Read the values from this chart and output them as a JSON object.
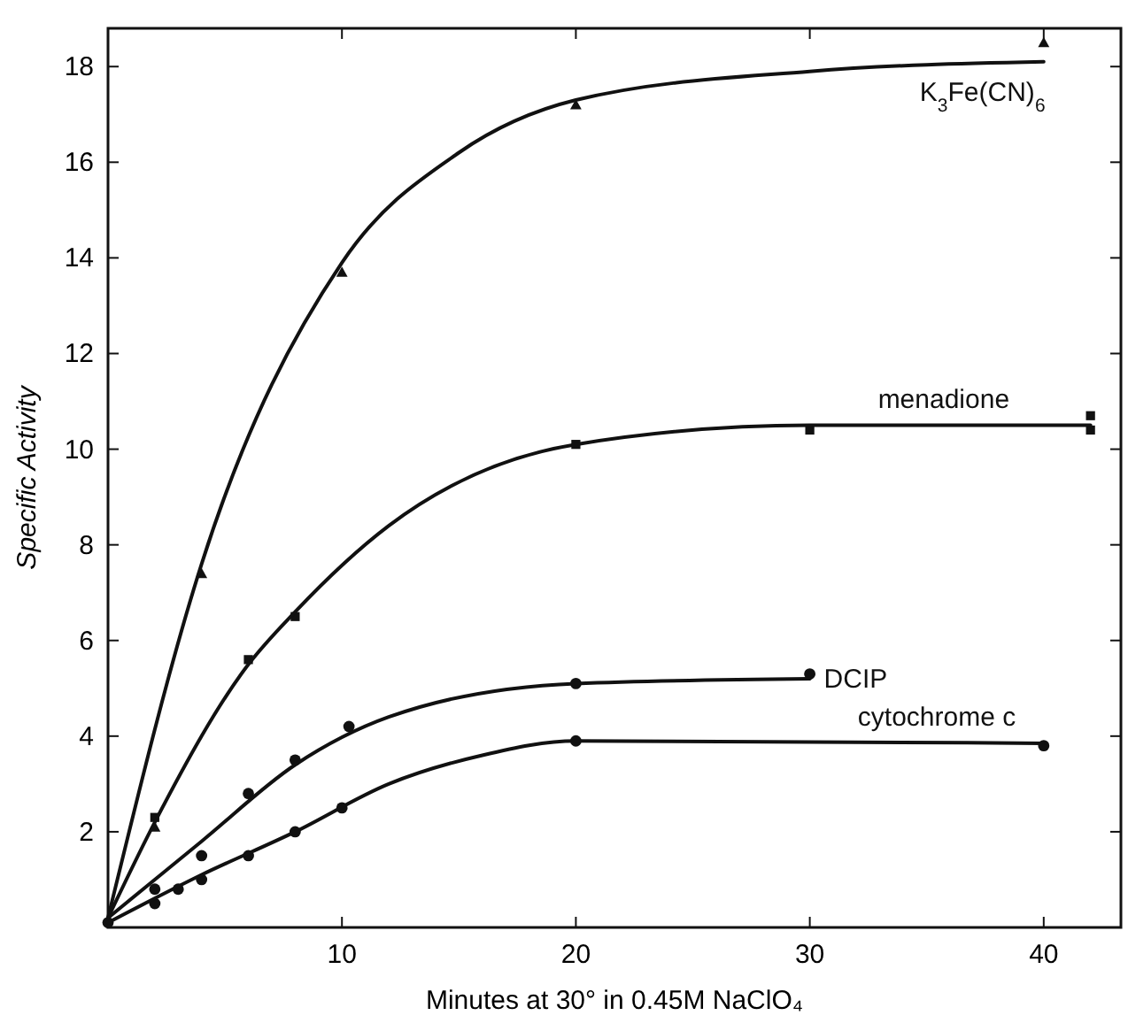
{
  "chart_data": {
    "type": "line",
    "xlabel": "Minutes at 30° in 0.45M NaClO₄",
    "ylabel": "Specific Activity",
    "xlim": [
      0,
      43.3
    ],
    "ylim": [
      0,
      18.8
    ],
    "xticks": [
      10,
      20,
      30,
      40
    ],
    "yticks": [
      2,
      4,
      6,
      8,
      10,
      12,
      14,
      16,
      18
    ],
    "series": [
      {
        "type": "scatter",
        "marker": "triangle",
        "color": "#111111",
        "x": [
          2,
          4,
          10,
          20,
          40
        ],
        "values": [
          2.1,
          7.4,
          13.7,
          17.2,
          18.5
        ]
      },
      {
        "type": "scatter",
        "marker": "square",
        "color": "#111111",
        "x": [
          2,
          6,
          8,
          20,
          30,
          42,
          42
        ],
        "values": [
          2.3,
          5.6,
          6.5,
          10.1,
          10.4,
          10.7,
          10.4
        ]
      },
      {
        "type": "scatter",
        "marker": "circle",
        "color": "#111111",
        "x": [
          2,
          4,
          6,
          8,
          10.3,
          20,
          30
        ],
        "values": [
          0.8,
          1.5,
          2.8,
          3.5,
          4.2,
          5.1,
          5.3
        ]
      },
      {
        "type": "scatter",
        "marker": "circle",
        "color": "#111111",
        "x": [
          0,
          2,
          3,
          4,
          6,
          8,
          10,
          20,
          40
        ],
        "values": [
          0.1,
          0.5,
          0.8,
          1.0,
          1.5,
          2.0,
          2.5,
          3.9,
          3.8
        ]
      },
      {
        "name": "K$_{3}$Fe(CN)$_{6}$",
        "color": "#111111",
        "x": [
          0,
          4,
          10,
          15,
          20,
          30,
          40
        ],
        "values": [
          0.2,
          7.6,
          13.9,
          16.2,
          17.3,
          17.9,
          18.1
        ]
      },
      {
        "name": "menadione",
        "color": "#111111",
        "x": [
          0,
          2,
          6,
          8,
          12,
          20,
          30,
          42
        ],
        "values": [
          0.2,
          2.2,
          5.5,
          6.6,
          8.4,
          10.1,
          10.5,
          10.5
        ]
      },
      {
        "name": "DCIP",
        "color": "#111111",
        "x": [
          0,
          4,
          8,
          12,
          20,
          30
        ],
        "values": [
          0.2,
          1.8,
          3.4,
          4.4,
          5.1,
          5.2
        ]
      },
      {
        "name": "cytochrome c",
        "color": "#111111",
        "x": [
          0,
          4,
          8,
          12,
          16,
          20,
          40
        ],
        "values": [
          0.1,
          1.1,
          2.0,
          3.0,
          3.6,
          3.9,
          3.85
        ]
      }
    ]
  }
}
